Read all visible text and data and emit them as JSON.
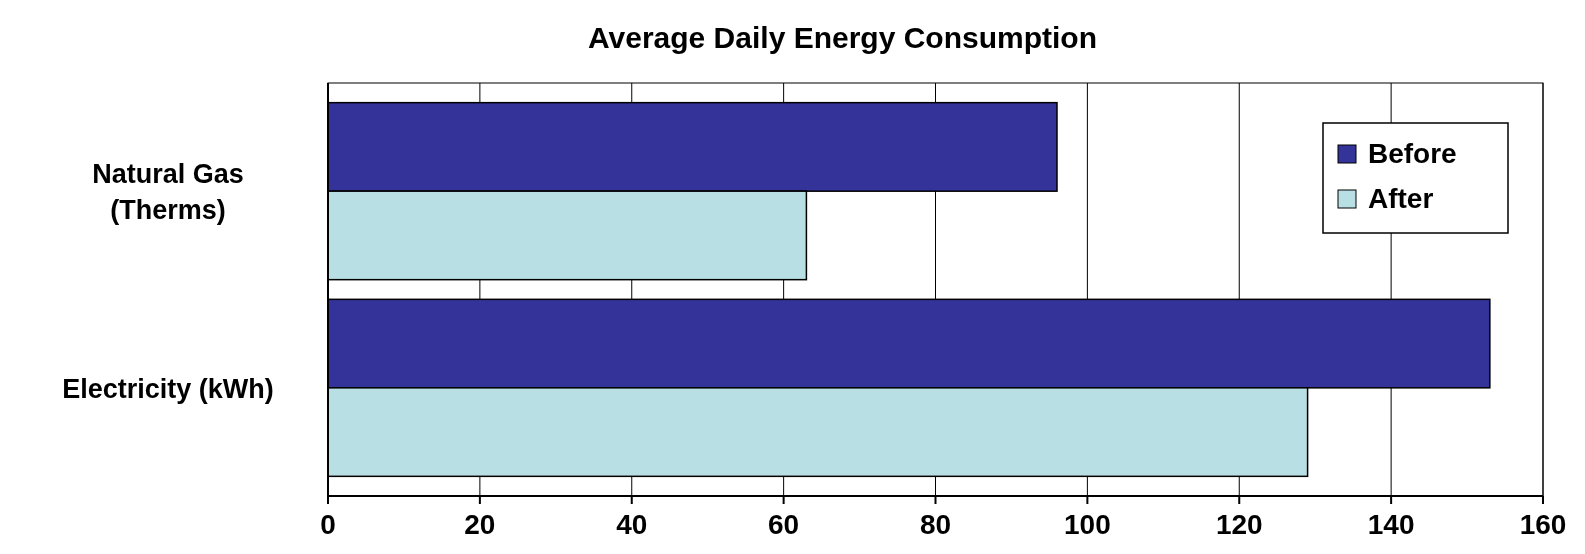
{
  "chart_data": {
    "type": "bar",
    "orientation": "horizontal",
    "title": "Average Daily Energy Consumption",
    "categories": [
      "Natural Gas (Therms)",
      "Electricity (kWh)"
    ],
    "series": [
      {
        "name": "Before",
        "color": "#333399",
        "values": [
          96,
          153
        ]
      },
      {
        "name": "After",
        "color": "#b8e0e4",
        "values": [
          63,
          129
        ]
      }
    ],
    "xlim": [
      0,
      160
    ],
    "xticks": [
      0,
      20,
      40,
      60,
      80,
      100,
      120,
      140,
      160
    ],
    "grid": "x",
    "legend": "top right"
  }
}
